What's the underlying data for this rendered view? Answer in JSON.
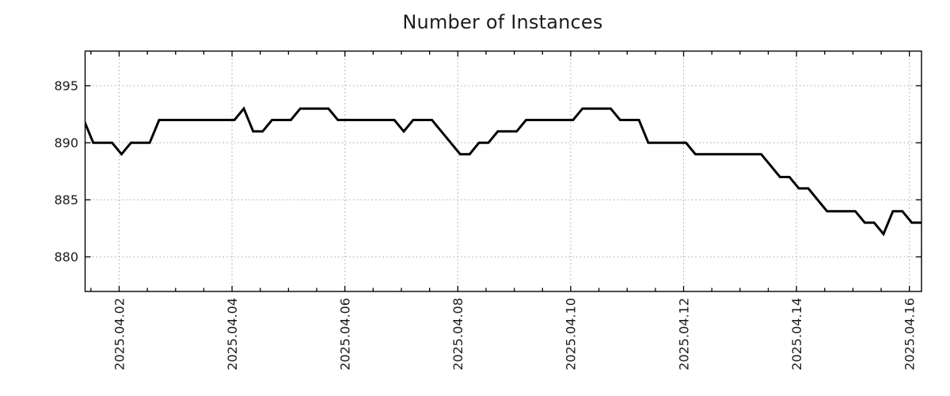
{
  "chart_data": {
    "type": "line",
    "title": "Number of Instances",
    "xlabel": "",
    "ylabel": "",
    "legend": "none",
    "grid": true,
    "grid_style": "dotted",
    "x_tick_labels": [
      "2025.04.02",
      "2025.04.04",
      "2025.04.06",
      "2025.04.08",
      "2025.04.10",
      "2025.04.12",
      "2025.04.14",
      "2025.04.16"
    ],
    "x_minor_tick_hours": 12,
    "y_tick_values": [
      880,
      885,
      890,
      895
    ],
    "ylim": [
      877,
      898
    ],
    "xlim": [
      "2025-04-01T09:00:00",
      "2025-04-16T06:00:00"
    ],
    "colors": {
      "line": "#000000",
      "grid": "#aaaaaa",
      "border": "#000000",
      "text": "#1c1c1c",
      "background": "#ffffff"
    },
    "series": [
      {
        "name": "Number of Instances",
        "start": "2025-04-01T09:00:00",
        "interval_hours": 4,
        "values": [
          892,
          890,
          890,
          890,
          889,
          890,
          890,
          890,
          892,
          892,
          892,
          892,
          892,
          892,
          892,
          892,
          892,
          893,
          891,
          891,
          892,
          892,
          892,
          893,
          893,
          893,
          893,
          892,
          892,
          892,
          892,
          892,
          892,
          892,
          891,
          892,
          892,
          892,
          891,
          890,
          889,
          889,
          890,
          890,
          891,
          891,
          891,
          892,
          892,
          892,
          892,
          892,
          892,
          893,
          893,
          893,
          893,
          892,
          892,
          892,
          890,
          890,
          890,
          890,
          890,
          889,
          889,
          889,
          889,
          889,
          889,
          889,
          889,
          888,
          887,
          887,
          886,
          886,
          885,
          884,
          884,
          884,
          884,
          883,
          883,
          882,
          884,
          884,
          883,
          883,
          883
        ]
      }
    ]
  }
}
